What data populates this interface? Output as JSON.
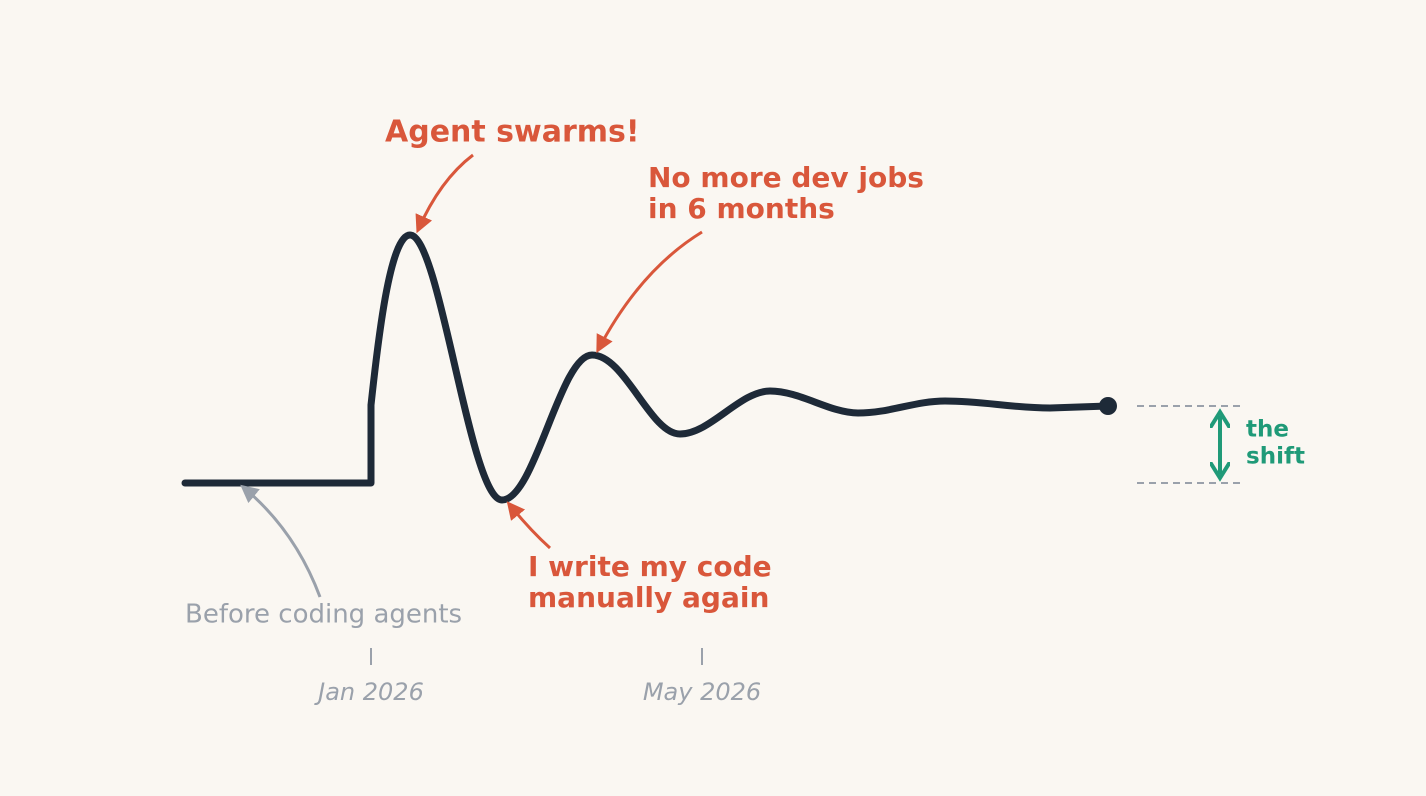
{
  "annotations": {
    "peak": "Agent swarms!",
    "second_peak": [
      "No more dev jobs",
      "in 6 months"
    ],
    "trough": [
      "I write my code",
      "manually again"
    ],
    "baseline": "Before coding agents"
  },
  "axis": {
    "ticks": [
      "Jan 2026",
      "May 2026"
    ]
  },
  "shift": [
    "the",
    "shift"
  ]
}
